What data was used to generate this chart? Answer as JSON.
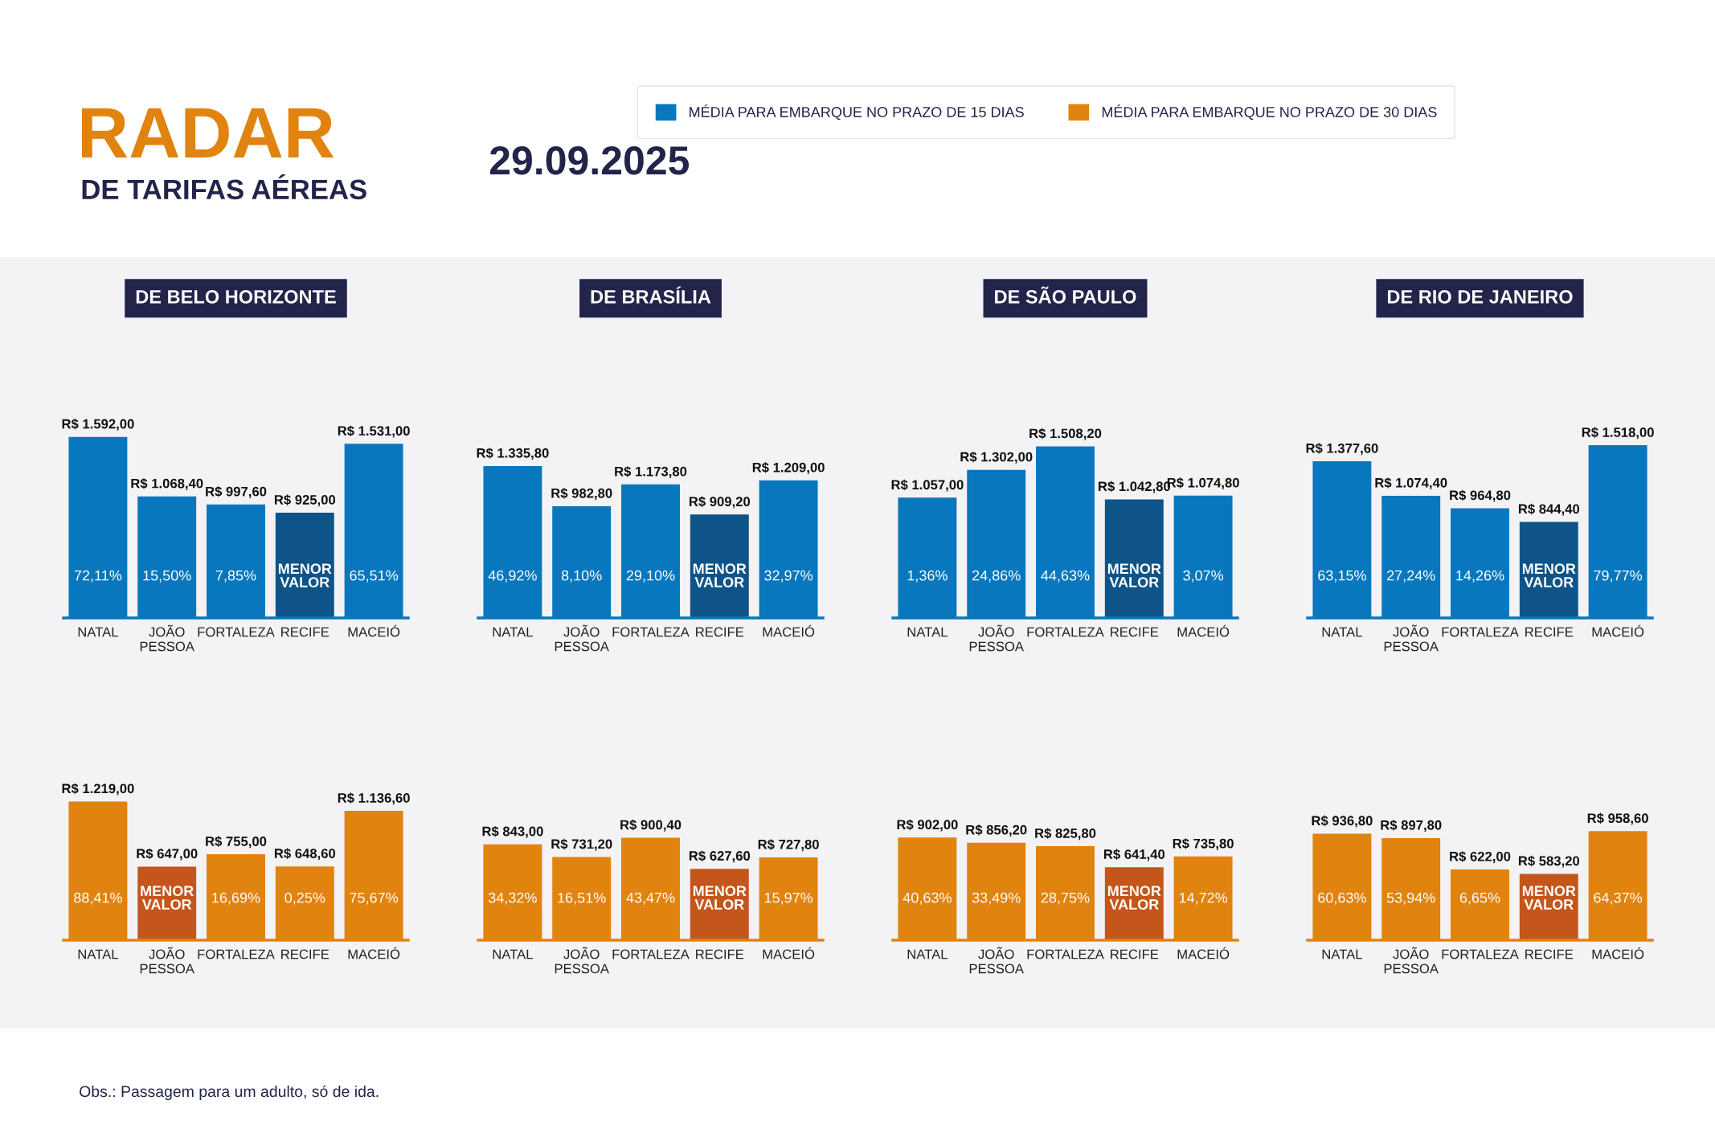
{
  "chart_data": [
    {
      "type": "other",
      "title": "RADAR",
      "subtitle": "DE TARIFAS AÉREAS",
      "annotations": [
        "29.09.2025",
        "Obs.: Passagem para um adulto, só de ida."
      ]
    },
    {
      "type": "bar",
      "title": "DE BELO HORIZONTE",
      "categories": [
        "NATAL",
        "JOÃO\nPESSOA",
        "FORTALEZA",
        "RECIFE",
        "MACEIÓ"
      ],
      "legend": "top",
      "series": [
        {
          "name": "MÉDIA PARA EMBARQUE NO PRAZO DE 15 DIAS",
          "color": "#0877bd",
          "colors": [
            "#0877bd",
            "#0877bd",
            "#0877bd",
            "#0f5488",
            "#0877bd"
          ],
          "values": [
            1592.0,
            1068.4,
            997.6,
            925.0,
            1531.0
          ],
          "value_labels": [
            "R$ 1.592,00",
            "R$ 1.068,40",
            "R$ 997,60",
            "R$ 925,00",
            "R$ 1.531,00"
          ]
        }
      ],
      "annotations": [
        "72,11%",
        "15,50%",
        "7,85%",
        "MENOR\nVALOR",
        "65,51%"
      ]
    },
    {
      "type": "bar",
      "title": "DE BRASÍLIA",
      "categories": [
        "NATAL",
        "JOÃO\nPESSOA",
        "FORTALEZA",
        "RECIFE",
        "MACEIÓ"
      ],
      "series": [
        {
          "color": "#0877bd",
          "colors": [
            "#0877bd",
            "#0877bd",
            "#0877bd",
            "#0f5488",
            "#0877bd"
          ],
          "values": [
            1335.8,
            982.8,
            1173.8,
            909.2,
            1209.0
          ],
          "value_labels": [
            "R$ 1.335,80",
            "R$ 982,80",
            "R$ 1.173,80",
            "R$ 909,20",
            "R$ 1.209,00"
          ]
        }
      ],
      "annotations": [
        "46,92%",
        "8,10%",
        "29,10%",
        "MENOR\nVALOR",
        "32,97%"
      ]
    },
    {
      "type": "bar",
      "title": "DE SÃO PAULO",
      "categories": [
        "NATAL",
        "JOÃO\nPESSOA",
        "FORTALEZA",
        "RECIFE",
        "MACEIÓ"
      ],
      "series": [
        {
          "color": "#0877bd",
          "colors": [
            "#0877bd",
            "#0877bd",
            "#0877bd",
            "#0f5488",
            "#0877bd"
          ],
          "values": [
            1057.0,
            1302.0,
            1508.2,
            1042.8,
            1074.8
          ],
          "value_labels": [
            "R$ 1.057,00",
            "R$ 1.302,00",
            "R$ 1.508,20",
            "R$ 1.042,80",
            "R$ 1.074,80"
          ]
        }
      ],
      "annotations": [
        "1,36%",
        "24,86%",
        "44,63%",
        "MENOR\nVALOR",
        "3,07%"
      ]
    },
    {
      "type": "bar",
      "title": "DE RIO DE JANEIRO",
      "categories": [
        "NATAL",
        "JOÃO\nPESSOA",
        "FORTALEZA",
        "RECIFE",
        "MACEIÓ"
      ],
      "series": [
        {
          "color": "#0877bd",
          "colors": [
            "#0877bd",
            "#0877bd",
            "#0877bd",
            "#0f5488",
            "#0877bd"
          ],
          "values": [
            1377.6,
            1074.4,
            964.8,
            844.4,
            1518.0
          ],
          "value_labels": [
            "R$ 1.377,60",
            "R$ 1.074,40",
            "R$ 964,80",
            "R$ 844,40",
            "R$ 1.518,00"
          ]
        }
      ],
      "annotations": [
        "63,15%",
        "27,24%",
        "14,26%",
        "MENOR\nVALOR",
        "79,77%"
      ]
    },
    {
      "type": "bar",
      "categories": [
        "NATAL",
        "JOÃO\nPESSOA",
        "FORTALEZA",
        "RECIFE",
        "MACEIÓ"
      ],
      "legend": "top",
      "series": [
        {
          "name": "MÉDIA PARA EMBARQUE NO PRAZO DE 30 DIAS",
          "color": "#e0830f",
          "colors": [
            "#e0830f",
            "#c4561c",
            "#e0830f",
            "#e0830f",
            "#e0830f"
          ],
          "values": [
            1219.0,
            647.0,
            755.0,
            648.6,
            1136.6
          ],
          "value_labels": [
            "R$ 1.219,00",
            "R$ 647,00",
            "R$ 755,00",
            "R$ 648,60",
            "R$ 1.136,60"
          ]
        }
      ],
      "annotations": [
        "88,41%",
        "MENOR\nVALOR",
        "16,69%",
        "0,25%",
        "75,67%"
      ]
    },
    {
      "type": "bar",
      "categories": [
        "NATAL",
        "JOÃO\nPESSOA",
        "FORTALEZA",
        "RECIFE",
        "MACEIÓ"
      ],
      "series": [
        {
          "color": "#e0830f",
          "colors": [
            "#e0830f",
            "#e0830f",
            "#e0830f",
            "#c4561c",
            "#e0830f"
          ],
          "values": [
            843.0,
            731.2,
            900.4,
            627.6,
            727.8
          ],
          "value_labels": [
            "R$ 843,00",
            "R$ 731,20",
            "R$ 900,40",
            "R$ 627,60",
            "R$ 727,80"
          ]
        }
      ],
      "annotations": [
        "34,32%",
        "16,51%",
        "43,47%",
        "MENOR\nVALOR",
        "15,97%"
      ]
    },
    {
      "type": "bar",
      "categories": [
        "NATAL",
        "JOÃO\nPESSOA",
        "FORTALEZA",
        "RECIFE",
        "MACEIÓ"
      ],
      "series": [
        {
          "color": "#e0830f",
          "colors": [
            "#e0830f",
            "#e0830f",
            "#e0830f",
            "#c4561c",
            "#e0830f"
          ],
          "values": [
            902.0,
            856.2,
            825.8,
            641.4,
            735.8
          ],
          "value_labels": [
            "R$ 902,00",
            "R$ 856,20",
            "R$ 825,80",
            "R$ 641,40",
            "R$ 735,80"
          ]
        }
      ],
      "annotations": [
        "40,63%",
        "33,49%",
        "28,75%",
        "MENOR\nVALOR",
        "14,72%"
      ]
    },
    {
      "type": "bar",
      "categories": [
        "NATAL",
        "JOÃO\nPESSOA",
        "FORTALEZA",
        "RECIFE",
        "MACEIÓ"
      ],
      "series": [
        {
          "color": "#e0830f",
          "colors": [
            "#e0830f",
            "#e0830f",
            "#e0830f",
            "#c4561c",
            "#e0830f"
          ],
          "values": [
            936.8,
            897.8,
            622.0,
            583.2,
            958.6
          ],
          "value_labels": [
            "R$ 936,80",
            "R$ 897,80",
            "R$ 622,00",
            "R$ 583,20",
            "R$ 958,60"
          ]
        }
      ],
      "annotations": [
        "60,63%",
        "53,94%",
        "6,65%",
        "MENOR\nVALOR",
        "64,37%"
      ]
    }
  ]
}
